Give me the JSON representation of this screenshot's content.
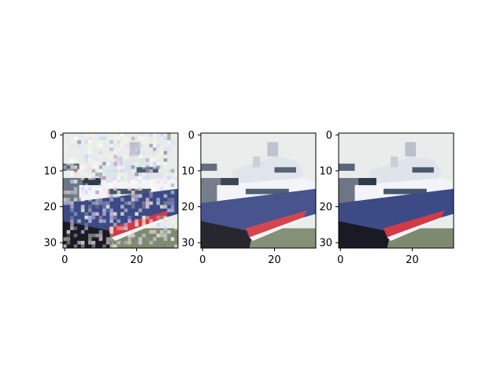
{
  "chart_data": [
    {
      "type": "image",
      "title": "",
      "xlabel": "",
      "ylabel": "",
      "xlim": [
        -0.5,
        31.5
      ],
      "ylim": [
        31.5,
        -0.5
      ],
      "x_ticks": [
        0,
        20
      ],
      "y_ticks": [
        0,
        10,
        20,
        30
      ],
      "x_tick_labels": [
        "0",
        "20"
      ],
      "y_tick_labels": [
        "0",
        "10",
        "20",
        "30"
      ],
      "grid": false,
      "variant": "noisy"
    },
    {
      "type": "image",
      "title": "",
      "xlabel": "",
      "ylabel": "",
      "xlim": [
        -0.5,
        31.5
      ],
      "ylim": [
        31.5,
        -0.5
      ],
      "x_ticks": [
        0,
        20
      ],
      "y_ticks": [
        0,
        10,
        20,
        30
      ],
      "x_tick_labels": [
        "0",
        "20"
      ],
      "y_tick_labels": [
        "0",
        "10",
        "20",
        "30"
      ],
      "grid": false,
      "variant": "denoised"
    },
    {
      "type": "image",
      "title": "",
      "xlabel": "",
      "ylabel": "",
      "xlim": [
        -0.5,
        31.5
      ],
      "ylim": [
        31.5,
        -0.5
      ],
      "x_ticks": [
        0,
        20
      ],
      "y_ticks": [
        0,
        10,
        20,
        30
      ],
      "x_tick_labels": [
        "0",
        "20"
      ],
      "y_tick_labels": [
        "0",
        "10",
        "20",
        "30"
      ],
      "grid": false,
      "variant": "clean"
    }
  ],
  "palette": {
    "sky": "#e8eceb",
    "hull_blue": "#3c4a86",
    "hull_dark": "#1a1a24",
    "stripe_red": "#d23a46",
    "white_deck": "#f2f4f8",
    "window_dark": "#2e3a48",
    "water": "#7e8a70"
  }
}
